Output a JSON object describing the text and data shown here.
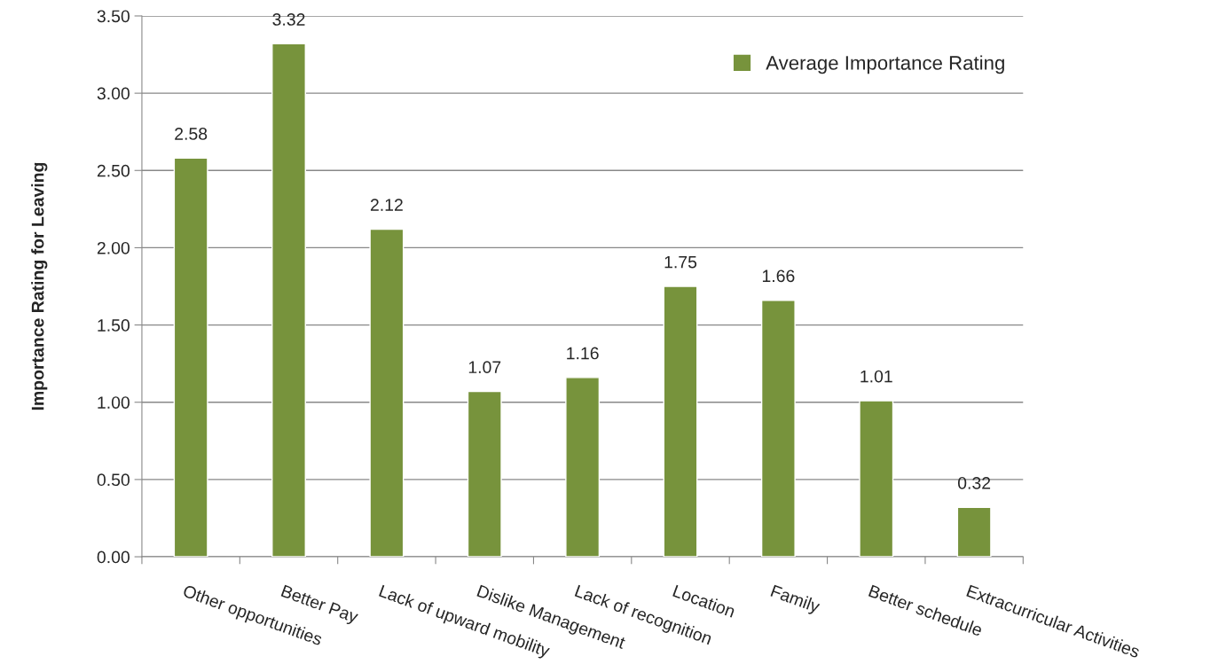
{
  "chart_data": {
    "type": "bar",
    "ylabel": "Importance Rating for Leaving",
    "categories": [
      "Other opportunities",
      "Better Pay",
      "Lack of upward mobility",
      "Dislike Management",
      "Lack of recognition",
      "Location",
      "Family",
      "Better schedule",
      "Extracurricular Activities"
    ],
    "series": [
      {
        "name": "Average Importance Rating",
        "color": "#77933c",
        "values": [
          2.58,
          3.32,
          2.12,
          1.07,
          1.16,
          1.75,
          1.66,
          1.01,
          0.32
        ]
      }
    ],
    "ylim": [
      0,
      3.5
    ],
    "yticks": [
      {
        "value": 0,
        "label": "0.00"
      },
      {
        "value": 0.5,
        "label": "0.50"
      },
      {
        "value": 1,
        "label": "1.00"
      },
      {
        "value": 1.5,
        "label": "1.50"
      },
      {
        "value": 2,
        "label": "2.00"
      },
      {
        "value": 2.5,
        "label": "2.50"
      },
      {
        "value": 3,
        "label": "3.00"
      },
      {
        "value": 3.5,
        "label": "3.50"
      }
    ],
    "grid": "y",
    "legend": "top right",
    "data_labels": true
  }
}
